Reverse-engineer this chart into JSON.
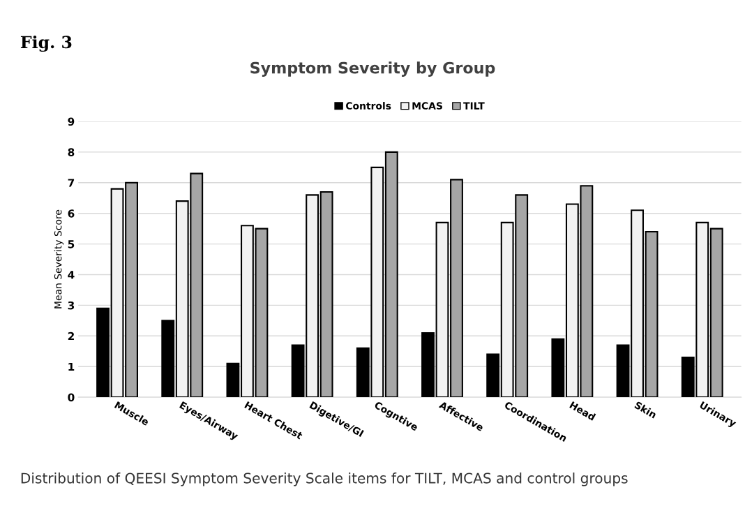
{
  "chart_data": {
    "type": "bar",
    "title": "Symptom Severity by Group",
    "ylabel": "Mean Severity Score",
    "annotations": [
      "Fig. 3",
      "Distribution of QEESI Symptom Severity Scale items for TILT, MCAS and control groups"
    ],
    "categories": [
      "Muscle",
      "Eyes/Airway",
      "Heart Chest",
      "Digetive/GI",
      "Cogntive",
      "Affective",
      "Coordination",
      "Head",
      "Skin",
      "Urinary"
    ],
    "series": [
      {
        "name": "Controls",
        "color": "#000000",
        "values": [
          2.9,
          2.5,
          1.1,
          1.7,
          1.6,
          2.1,
          1.4,
          1.9,
          1.7,
          1.3
        ]
      },
      {
        "name": "MCAS",
        "color": "#f2f2f2",
        "values": [
          6.8,
          6.4,
          5.6,
          6.6,
          7.5,
          5.7,
          5.7,
          6.3,
          6.1,
          5.7
        ]
      },
      {
        "name": "TILT",
        "color": "#a6a6a6",
        "values": [
          7.0,
          7.3,
          5.5,
          6.7,
          8.0,
          7.1,
          6.6,
          6.9,
          5.4,
          5.5
        ]
      }
    ],
    "ylim": [
      0,
      9
    ],
    "yticks": [
      0,
      1,
      2,
      3,
      4,
      5,
      6,
      7,
      8,
      9
    ],
    "grid": "y",
    "legend": "top"
  }
}
